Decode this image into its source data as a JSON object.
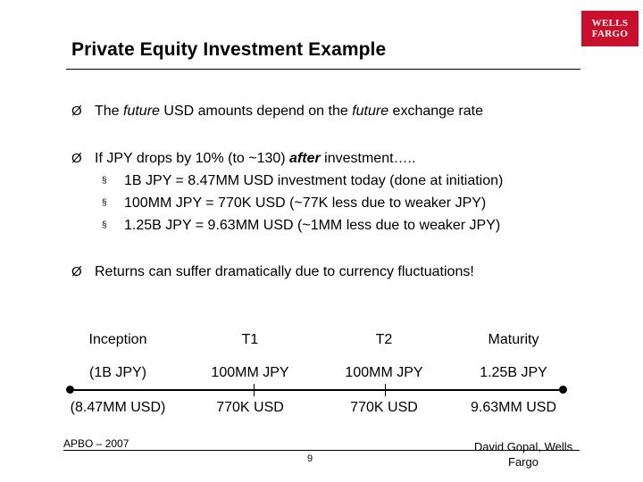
{
  "slide": {
    "title": "Private Equity Investment Example",
    "logo": {
      "line1": "WELLS",
      "line2": "FARGO"
    },
    "bullets": [
      {
        "parts": [
          "The ",
          "future",
          " USD amounts depend on the ",
          "future",
          " exchange rate"
        ]
      },
      {
        "parts": [
          "If JPY drops by 10% (to ~130) ",
          "after",
          " investment….."
        ],
        "subs": [
          "1B JPY = 8.47MM USD investment today (done at initiation)",
          "100MM JPY = 770K USD (~77K less due to weaker JPY)",
          "1.25B JPY = 9.63MM USD (~1MM less due to weaker JPY)"
        ]
      },
      {
        "parts": [
          "Returns can suffer dramatically due to currency fluctuations!"
        ]
      }
    ],
    "bullet_symbol": "Ø",
    "sub_symbol": "§",
    "timeline": {
      "headers": [
        "Inception",
        "T1",
        "T2",
        "Maturity"
      ],
      "jpy": [
        "(1B JPY)",
        "100MM JPY",
        "100MM JPY",
        "1.25B JPY"
      ],
      "usd": [
        "(8.47MM USD)",
        "770K USD",
        "770K USD",
        "9.63MM USD"
      ]
    },
    "footer": {
      "left": "APBO – 2007",
      "page": "9",
      "right_line1": "David Gopal, Wells",
      "right_line2": "Fargo"
    },
    "colors": {
      "logo_bg": "#c8102e",
      "text": "#000000"
    }
  }
}
